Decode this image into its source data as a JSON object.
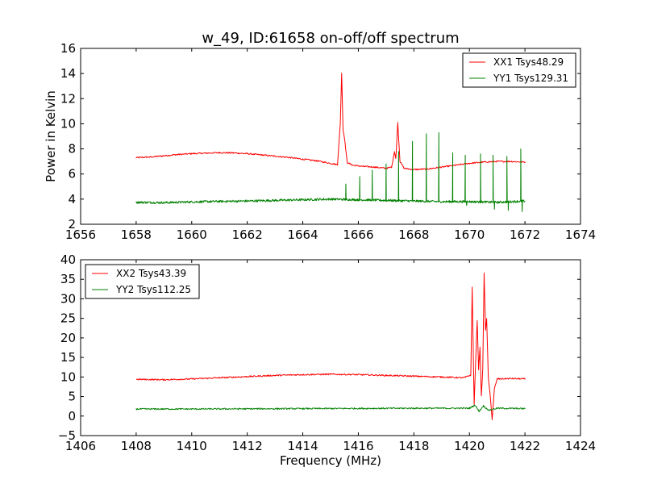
{
  "figure_title": "w_49, ID:61658 on-off/off spectrum",
  "colors": {
    "red": "#ff0000",
    "green": "#008000"
  },
  "chart_data": [
    {
      "type": "line",
      "id": "top",
      "title": "w_49, ID:61658 on-off/off spectrum",
      "xlabel": "",
      "ylabel": "Power in Kelvin",
      "xlim": [
        1656,
        1674
      ],
      "ylim": [
        2,
        16
      ],
      "xticks": [
        1656,
        1658,
        1660,
        1662,
        1664,
        1666,
        1668,
        1670,
        1672,
        1674
      ],
      "yticks": [
        2,
        4,
        6,
        8,
        10,
        12,
        14,
        16
      ],
      "legend_position": "top-right",
      "series": [
        {
          "name": "XX1 Tsys48.29",
          "color": "#ff0000",
          "points": [
            [
              1658.0,
              7.3
            ],
            [
              1658.5,
              7.35
            ],
            [
              1659.0,
              7.45
            ],
            [
              1659.5,
              7.55
            ],
            [
              1660.0,
              7.62
            ],
            [
              1660.5,
              7.66
            ],
            [
              1661.0,
              7.7
            ],
            [
              1661.5,
              7.68
            ],
            [
              1662.0,
              7.62
            ],
            [
              1662.5,
              7.52
            ],
            [
              1663.0,
              7.42
            ],
            [
              1663.5,
              7.32
            ],
            [
              1664.0,
              7.18
            ],
            [
              1664.5,
              7.05
            ],
            [
              1665.0,
              6.85
            ],
            [
              1665.25,
              6.75
            ],
            [
              1665.35,
              10.0
            ],
            [
              1665.4,
              14.0
            ],
            [
              1665.45,
              9.5
            ],
            [
              1665.5,
              8.9
            ],
            [
              1665.6,
              6.9
            ],
            [
              1665.8,
              6.7
            ],
            [
              1666.2,
              6.6
            ],
            [
              1666.6,
              6.55
            ],
            [
              1667.0,
              6.45
            ],
            [
              1667.2,
              6.55
            ],
            [
              1667.3,
              7.8
            ],
            [
              1667.35,
              7.2
            ],
            [
              1667.42,
              10.1
            ],
            [
              1667.5,
              7.0
            ],
            [
              1667.65,
              6.45
            ],
            [
              1668.0,
              6.35
            ],
            [
              1668.5,
              6.4
            ],
            [
              1669.0,
              6.55
            ],
            [
              1669.5,
              6.7
            ],
            [
              1670.0,
              6.85
            ],
            [
              1670.5,
              6.95
            ],
            [
              1671.0,
              7.0
            ],
            [
              1671.5,
              7.0
            ],
            [
              1672.0,
              6.95
            ]
          ]
        },
        {
          "name": "YY1 Tsys129.31",
          "color": "#008000",
          "base": [
            [
              1658.0,
              3.75
            ],
            [
              1659.0,
              3.72
            ],
            [
              1660.0,
              3.78
            ],
            [
              1661.0,
              3.82
            ],
            [
              1662.0,
              3.85
            ],
            [
              1663.0,
              3.9
            ],
            [
              1664.0,
              3.95
            ],
            [
              1665.0,
              4.0
            ],
            [
              1666.0,
              3.95
            ],
            [
              1667.0,
              3.9
            ],
            [
              1668.0,
              3.85
            ],
            [
              1669.0,
              3.8
            ],
            [
              1670.0,
              3.8
            ],
            [
              1671.0,
              3.75
            ],
            [
              1672.0,
              3.85
            ]
          ],
          "spikes": [
            [
              1665.55,
              5.2
            ],
            [
              1666.05,
              5.8
            ],
            [
              1666.5,
              6.3
            ],
            [
              1667.0,
              6.8
            ],
            [
              1667.45,
              7.8
            ],
            [
              1667.95,
              8.6
            ],
            [
              1668.45,
              9.2
            ],
            [
              1668.9,
              9.3
            ],
            [
              1669.4,
              7.7
            ],
            [
              1669.85,
              7.5
            ],
            [
              1670.4,
              7.6
            ],
            [
              1670.85,
              7.5
            ],
            [
              1671.35,
              7.4
            ],
            [
              1671.85,
              8.0
            ]
          ],
          "dips": [
            [
              1669.9,
              3.5
            ],
            [
              1670.9,
              3.2
            ],
            [
              1671.4,
              3.1
            ],
            [
              1671.9,
              3.0
            ]
          ]
        }
      ]
    },
    {
      "type": "line",
      "id": "bottom",
      "title": "",
      "xlabel": "Frequency (MHz)",
      "ylabel": "",
      "xlim": [
        1406,
        1424
      ],
      "ylim": [
        -5,
        40
      ],
      "xticks": [
        1406,
        1408,
        1410,
        1412,
        1414,
        1416,
        1418,
        1420,
        1422,
        1424
      ],
      "yticks": [
        -5,
        0,
        5,
        10,
        15,
        20,
        25,
        30,
        35,
        40
      ],
      "legend_position": "top-left",
      "series": [
        {
          "name": "XX2 Tsys43.39",
          "color": "#ff0000",
          "points": [
            [
              1408.0,
              9.4
            ],
            [
              1409.0,
              9.3
            ],
            [
              1410.0,
              9.5
            ],
            [
              1411.0,
              9.8
            ],
            [
              1412.0,
              10.1
            ],
            [
              1413.0,
              10.4
            ],
            [
              1414.0,
              10.6
            ],
            [
              1415.0,
              10.7
            ],
            [
              1416.0,
              10.6
            ],
            [
              1417.0,
              10.4
            ],
            [
              1418.0,
              10.2
            ],
            [
              1419.0,
              10.0
            ],
            [
              1419.8,
              9.8
            ],
            [
              1420.05,
              10.5
            ],
            [
              1420.1,
              33.0
            ],
            [
              1420.17,
              3.0
            ],
            [
              1420.22,
              13.0
            ],
            [
              1420.28,
              24.5
            ],
            [
              1420.33,
              12.0
            ],
            [
              1420.38,
              17.5
            ],
            [
              1420.43,
              5.0
            ],
            [
              1420.48,
              12.0
            ],
            [
              1420.53,
              36.5
            ],
            [
              1420.58,
              22.0
            ],
            [
              1420.62,
              25.0
            ],
            [
              1420.68,
              10.0
            ],
            [
              1420.75,
              5.0
            ],
            [
              1420.82,
              -0.8
            ],
            [
              1420.9,
              7.0
            ],
            [
              1421.0,
              9.5
            ],
            [
              1421.5,
              9.6
            ],
            [
              1422.0,
              9.5
            ]
          ]
        },
        {
          "name": "YY2 Tsys112.25",
          "color": "#008000",
          "points": [
            [
              1408.0,
              1.8
            ],
            [
              1410.0,
              1.8
            ],
            [
              1412.0,
              1.85
            ],
            [
              1414.0,
              1.9
            ],
            [
              1416.0,
              1.95
            ],
            [
              1418.0,
              2.0
            ],
            [
              1420.0,
              2.0
            ],
            [
              1420.2,
              2.8
            ],
            [
              1420.35,
              1.2
            ],
            [
              1420.5,
              2.6
            ],
            [
              1420.7,
              1.5
            ],
            [
              1421.0,
              2.0
            ],
            [
              1422.0,
              1.9
            ]
          ]
        }
      ]
    }
  ]
}
